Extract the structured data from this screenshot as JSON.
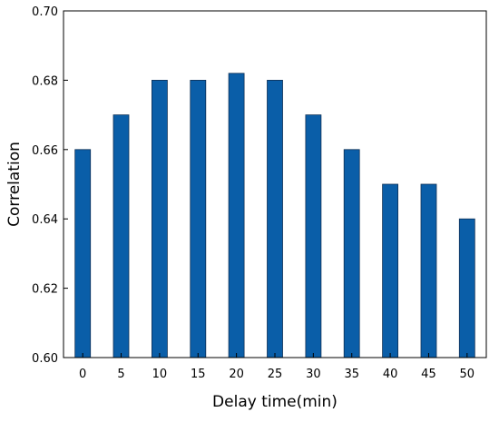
{
  "chart_data": {
    "type": "bar",
    "title": "",
    "xlabel": "Delay time(min)",
    "ylabel": "Correlation",
    "categories": [
      "0",
      "5",
      "10",
      "15",
      "20",
      "25",
      "30",
      "35",
      "40",
      "45",
      "50"
    ],
    "values": [
      0.66,
      0.67,
      0.68,
      0.68,
      0.682,
      0.68,
      0.67,
      0.66,
      0.65,
      0.65,
      0.64
    ],
    "ylim": [
      0.6,
      0.7
    ],
    "yticks": [
      "0.60",
      "0.62",
      "0.64",
      "0.66",
      "0.68",
      "0.70"
    ],
    "grid": false,
    "legend": "none",
    "bar_color": "#0a5ea8",
    "bar_edge_color": "#0d2f55"
  }
}
